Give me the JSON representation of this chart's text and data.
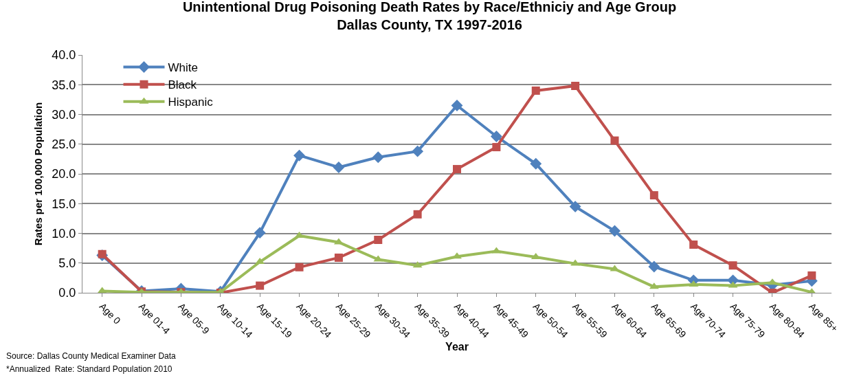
{
  "chart_data": {
    "type": "line",
    "title": "Unintentional Drug Poisoning Death Rates by Race/Ethniciy and Age Group\nDallas County, TX 1997-2016",
    "xlabel": "Year",
    "ylabel": "Rates per 100,000 Population",
    "categories": [
      "Age 0",
      "Age 01-4",
      "Age 05-9",
      "Age 10-14",
      "Age 15-19",
      "Age 20-24",
      "Age 25-29",
      "Age 30-34",
      "Age 35-39",
      "Age 40-44",
      "Age 45-49",
      "Age 50-54",
      "Age 55-59",
      "Age 60-64",
      "Age 65-69",
      "Age 70-74",
      "Age 75-79",
      "Age 80-84",
      "Age 85+"
    ],
    "series": [
      {
        "name": "White",
        "color": "#4f81bd",
        "marker": "diamond",
        "values": [
          6.3,
          0.3,
          0.7,
          0.2,
          10.1,
          23.1,
          21.1,
          22.8,
          23.8,
          31.5,
          26.3,
          21.7,
          14.5,
          10.4,
          4.4,
          2.1,
          2.1,
          1.3,
          2.0
        ]
      },
      {
        "name": "Black",
        "color": "#c0504d",
        "marker": "square",
        "values": [
          6.5,
          0.2,
          0.1,
          0,
          1.2,
          4.3,
          5.9,
          8.9,
          13.2,
          20.8,
          24.5,
          34.0,
          34.8,
          25.6,
          16.4,
          8.1,
          4.6,
          0,
          2.9
        ]
      },
      {
        "name": "Hispanic",
        "color": "#9bbb59",
        "marker": "triangle",
        "values": [
          0.3,
          0.1,
          0.1,
          0.1,
          5.2,
          9.6,
          8.5,
          5.6,
          4.6,
          6.1,
          7.0,
          6.0,
          4.9,
          4.0,
          1.0,
          1.4,
          1.2,
          1.7,
          0.1
        ]
      }
    ],
    "ylim": [
      0,
      40
    ],
    "yticks": [
      {
        "value": 0,
        "label": "0.0"
      },
      {
        "value": 5,
        "label": "5.0"
      },
      {
        "value": 10,
        "label": "10.0"
      },
      {
        "value": 15,
        "label": "15.0"
      },
      {
        "value": 20,
        "label": "20.0"
      },
      {
        "value": 25,
        "label": "25.0"
      },
      {
        "value": 30,
        "label": "30.0"
      },
      {
        "value": 35,
        "label": "35.0"
      },
      {
        "value": 40,
        "label": "40.0"
      }
    ],
    "grid": "y",
    "legend": "top left",
    "line_style": "solid",
    "annotations": [
      "Source: Dallas County Medical Examiner Data",
      "*Annualized  Rate: Standard Population 2010"
    ]
  }
}
